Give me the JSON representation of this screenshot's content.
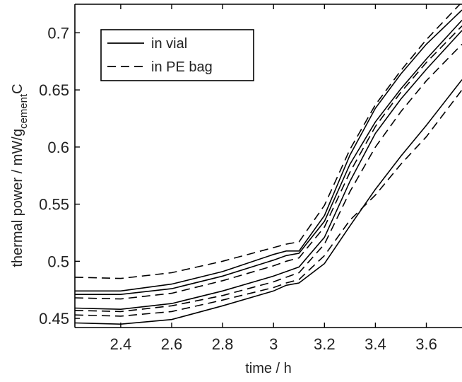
{
  "chart_data": {
    "type": "line",
    "xlabel": "time / h",
    "ylabel": {
      "main": "thermal power / mW/g",
      "subscript": "cement",
      "suffix": "C"
    },
    "xlim": [
      2.22,
      3.74
    ],
    "ylim": [
      0.442,
      0.725
    ],
    "xticks": [
      2.4,
      2.6,
      2.8,
      3.0,
      3.2,
      3.4,
      3.6
    ],
    "xtick_labels": [
      "2.4",
      "2.6",
      "2.8",
      "3",
      "3.2",
      "3.4",
      "3.6"
    ],
    "yticks": [
      0.45,
      0.5,
      0.55,
      0.6,
      0.65,
      0.7
    ],
    "ytick_labels": [
      "0.45",
      "0.5",
      "0.55",
      "0.6",
      "0.65",
      "0.7"
    ],
    "grid": false,
    "legend_position": "top-left",
    "legend": [
      {
        "label": "in vial",
        "style": "solid"
      },
      {
        "label": "in PE bag",
        "style": "dashed"
      }
    ],
    "x": [
      2.22,
      2.4,
      2.6,
      2.8,
      3.0,
      3.05,
      3.1,
      3.2,
      3.3,
      3.4,
      3.5,
      3.6,
      3.74
    ],
    "series": [
      {
        "style": "solid",
        "values": [
          0.474,
          0.474,
          0.48,
          0.491,
          0.506,
          0.509,
          0.509,
          0.54,
          0.593,
          0.634,
          0.664,
          0.69,
          0.72
        ]
      },
      {
        "style": "solid",
        "values": [
          0.471,
          0.471,
          0.476,
          0.487,
          0.501,
          0.505,
          0.507,
          0.535,
          0.585,
          0.622,
          0.651,
          0.677,
          0.711
        ]
      },
      {
        "style": "solid",
        "values": [
          0.459,
          0.458,
          0.463,
          0.474,
          0.487,
          0.491,
          0.495,
          0.521,
          0.57,
          0.612,
          0.642,
          0.668,
          0.702
        ]
      },
      {
        "style": "solid",
        "values": [
          0.446,
          0.445,
          0.449,
          0.461,
          0.474,
          0.479,
          0.481,
          0.498,
          0.531,
          0.563,
          0.592,
          0.619,
          0.659
        ]
      },
      {
        "style": "dashed",
        "values": [
          0.486,
          0.485,
          0.49,
          0.5,
          0.512,
          0.515,
          0.517,
          0.549,
          0.598,
          0.637,
          0.667,
          0.694,
          0.727
        ]
      },
      {
        "style": "dashed",
        "values": [
          0.468,
          0.467,
          0.472,
          0.483,
          0.496,
          0.5,
          0.503,
          0.53,
          0.578,
          0.618,
          0.648,
          0.674,
          0.706
        ]
      },
      {
        "style": "dashed",
        "values": [
          0.457,
          0.456,
          0.461,
          0.47,
          0.482,
          0.486,
          0.49,
          0.515,
          0.561,
          0.6,
          0.631,
          0.658,
          0.69
        ]
      },
      {
        "style": "dashed",
        "values": [
          0.453,
          0.452,
          0.456,
          0.466,
          0.477,
          0.481,
          0.484,
          0.505,
          0.536,
          0.558,
          0.585,
          0.609,
          0.65
        ]
      }
    ]
  }
}
